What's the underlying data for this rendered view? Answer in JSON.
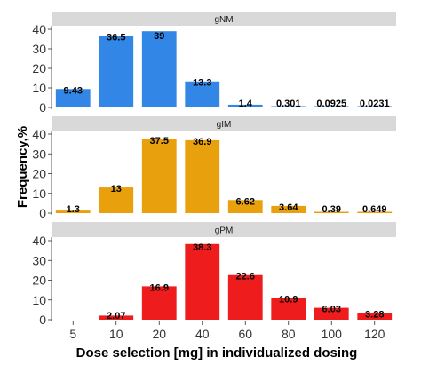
{
  "chart_data": {
    "type": "bar",
    "ylabel": "Frequency,%",
    "xlabel": "Dose selection [mg] in individualized dosing",
    "categories": [
      "5",
      "10",
      "20",
      "40",
      "60",
      "80",
      "100",
      "120"
    ],
    "ylim": [
      0,
      40
    ],
    "yticks": [
      0,
      10,
      20,
      30,
      40
    ],
    "grid": false,
    "panels": [
      {
        "name": "gNM",
        "color": "#3286E6",
        "values": [
          9.43,
          36.5,
          39,
          13.3,
          1.4,
          0.301,
          0.0925,
          0.0231
        ],
        "labels": [
          "9.43",
          "36.5",
          "39",
          "13.3",
          "1.4",
          "0.301",
          "0.0925",
          "0.0231"
        ]
      },
      {
        "name": "gIM",
        "color": "#E8A00C",
        "values": [
          1.3,
          13,
          37.5,
          36.9,
          6.62,
          3.64,
          0.39,
          0.649
        ],
        "labels": [
          "1.3",
          "13",
          "37.5",
          "36.9",
          "6.62",
          "3.64",
          "0.39",
          "0.649"
        ]
      },
      {
        "name": "gPM",
        "color": "#EE1C1C",
        "values": [
          null,
          2.07,
          16.9,
          38.3,
          22.6,
          10.9,
          6.03,
          3.28
        ],
        "labels": [
          "",
          "2.07",
          "16.9",
          "38.3",
          "22.6",
          "10.9",
          "6.03",
          "3.28"
        ]
      }
    ]
  }
}
